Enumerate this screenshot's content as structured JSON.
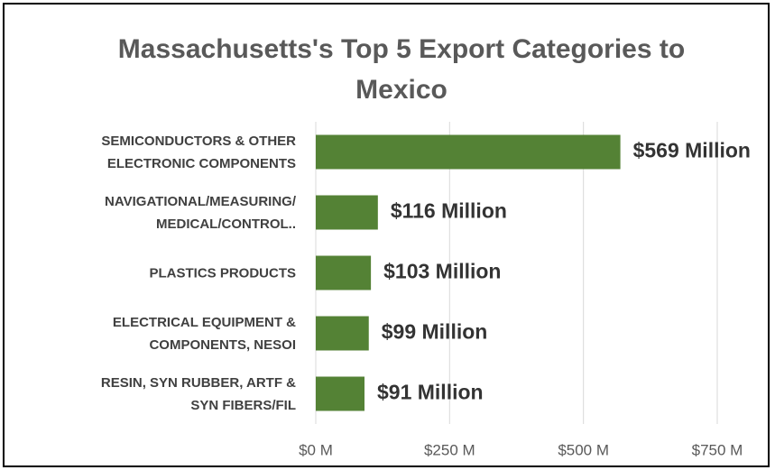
{
  "chart_data": {
    "type": "hbar",
    "title": "Massachusetts's Top 5 Export Categories to Mexico",
    "categories": [
      "SEMICONDUCTORS & OTHER\nELECTRONIC COMPONENTS",
      "NAVIGATIONAL/MEASURING/\nMEDICAL/CONTROL..",
      "PLASTICS PRODUCTS",
      "ELECTRICAL EQUIPMENT &\nCOMPONENTS, NESOI",
      "RESIN, SYN RUBBER, ARTF &\nSYN FIBERS/FIL"
    ],
    "values": [
      569,
      116,
      103,
      99,
      91
    ],
    "value_labels": [
      "$569 Million",
      "$116 Million",
      "$103 Million",
      "$99 Million",
      "$91 Million"
    ],
    "color": "#548235",
    "xlim": [
      0,
      750
    ],
    "xticks": [
      {
        "value": 0,
        "label": "$0 M"
      },
      {
        "value": 250,
        "label": "$250 M"
      },
      {
        "value": 500,
        "label": "$500 M"
      },
      {
        "value": 750,
        "label": "$750 M"
      }
    ],
    "grid": true
  }
}
